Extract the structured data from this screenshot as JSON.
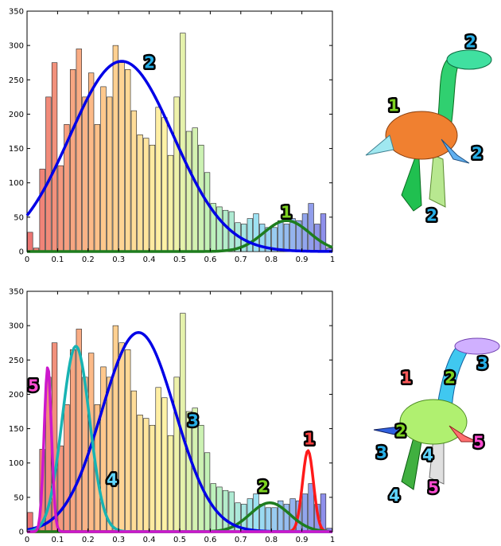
{
  "chart_data": [
    {
      "type": "bar",
      "xlim": [
        0,
        1
      ],
      "ylim": [
        0,
        350
      ],
      "x_ticks": [
        "0",
        "0.1",
        "0.2",
        "0.3",
        "0.4",
        "0.5",
        "0.6",
        "0.7",
        "0.8",
        "0.9",
        "1"
      ],
      "y_ticks": [
        "0",
        "50",
        "100",
        "150",
        "200",
        "250",
        "300",
        "350"
      ],
      "grid": false,
      "bin_width": 0.02,
      "bin_centers": [
        0.01,
        0.03,
        0.05,
        0.07,
        0.09,
        0.11,
        0.13,
        0.15,
        0.17,
        0.19,
        0.21,
        0.23,
        0.25,
        0.27,
        0.29,
        0.31,
        0.33,
        0.35,
        0.37,
        0.39,
        0.41,
        0.43,
        0.45,
        0.47,
        0.49,
        0.51,
        0.53,
        0.55,
        0.57,
        0.59,
        0.61,
        0.63,
        0.65,
        0.67,
        0.69,
        0.71,
        0.73,
        0.75,
        0.77,
        0.79,
        0.81,
        0.83,
        0.85,
        0.87,
        0.89,
        0.91,
        0.93,
        0.95,
        0.97,
        0.99
      ],
      "values": [
        28,
        5,
        120,
        225,
        275,
        125,
        185,
        265,
        295,
        225,
        260,
        185,
        240,
        225,
        300,
        275,
        265,
        205,
        170,
        165,
        155,
        210,
        195,
        140,
        225,
        318,
        175,
        180,
        155,
        115,
        70,
        65,
        60,
        58,
        42,
        40,
        48,
        55,
        40,
        35,
        35,
        45,
        40,
        48,
        45,
        55,
        70,
        40,
        55,
        5
      ],
      "series": [
        {
          "label": "1",
          "mean": 0.85,
          "peak": 45,
          "sigma": 0.075,
          "color": "#1e7d1e"
        },
        {
          "label": "2",
          "mean": 0.31,
          "peak": 277,
          "sigma": 0.17,
          "color": "#0000e6"
        }
      ],
      "model_labels": [
        {
          "text": "1",
          "color": "#7ed321"
        },
        {
          "text": "2",
          "color": "#27aee6"
        },
        {
          "text": "2",
          "color": "#27aee6"
        },
        {
          "text": "2",
          "color": "#27aee6"
        }
      ]
    },
    {
      "type": "bar",
      "xlim": [
        0,
        1
      ],
      "ylim": [
        0,
        350
      ],
      "x_ticks": [
        "0",
        "0.1",
        "0.2",
        "0.3",
        "0.4",
        "0.5",
        "0.6",
        "0.7",
        "0.8",
        "0.9",
        "1"
      ],
      "y_ticks": [
        "0",
        "50",
        "100",
        "150",
        "200",
        "250",
        "300",
        "350"
      ],
      "grid": false,
      "bin_width": 0.02,
      "bin_centers": [
        0.01,
        0.03,
        0.05,
        0.07,
        0.09,
        0.11,
        0.13,
        0.15,
        0.17,
        0.19,
        0.21,
        0.23,
        0.25,
        0.27,
        0.29,
        0.31,
        0.33,
        0.35,
        0.37,
        0.39,
        0.41,
        0.43,
        0.45,
        0.47,
        0.49,
        0.51,
        0.53,
        0.55,
        0.57,
        0.59,
        0.61,
        0.63,
        0.65,
        0.67,
        0.69,
        0.71,
        0.73,
        0.75,
        0.77,
        0.79,
        0.81,
        0.83,
        0.85,
        0.87,
        0.89,
        0.91,
        0.93,
        0.95,
        0.97,
        0.99
      ],
      "values": [
        28,
        5,
        120,
        225,
        275,
        125,
        185,
        265,
        295,
        225,
        260,
        185,
        240,
        225,
        300,
        275,
        265,
        205,
        170,
        165,
        155,
        210,
        195,
        140,
        225,
        318,
        175,
        180,
        155,
        115,
        70,
        65,
        60,
        58,
        42,
        40,
        48,
        55,
        40,
        35,
        35,
        45,
        40,
        48,
        45,
        55,
        70,
        40,
        55,
        5
      ],
      "series": [
        {
          "label": "1",
          "mean": 0.92,
          "peak": 118,
          "sigma": 0.018,
          "color": "#ff1a1a"
        },
        {
          "label": "2",
          "mean": 0.795,
          "peak": 42,
          "sigma": 0.065,
          "color": "#1e7d1e"
        },
        {
          "label": "3",
          "mean": 0.365,
          "peak": 290,
          "sigma": 0.12,
          "color": "#0000e6"
        },
        {
          "label": "4",
          "mean": 0.16,
          "peak": 270,
          "sigma": 0.045,
          "color": "#17b3b3"
        },
        {
          "label": "5",
          "mean": 0.068,
          "peak": 240,
          "sigma": 0.012,
          "color": "#cc18cc"
        }
      ],
      "model_labels": [
        {
          "text": "1",
          "color": "#ff5a5a"
        },
        {
          "text": "2",
          "color": "#7ed321"
        },
        {
          "text": "3",
          "color": "#27aee6"
        },
        {
          "text": "2",
          "color": "#7ed321"
        },
        {
          "text": "3",
          "color": "#27aee6"
        },
        {
          "text": "4",
          "color": "#5fd5ff"
        },
        {
          "text": "5",
          "color": "#ff4dd2"
        },
        {
          "text": "4",
          "color": "#5fd5ff"
        },
        {
          "text": "5",
          "color": "#ff4dd2"
        }
      ]
    }
  ]
}
